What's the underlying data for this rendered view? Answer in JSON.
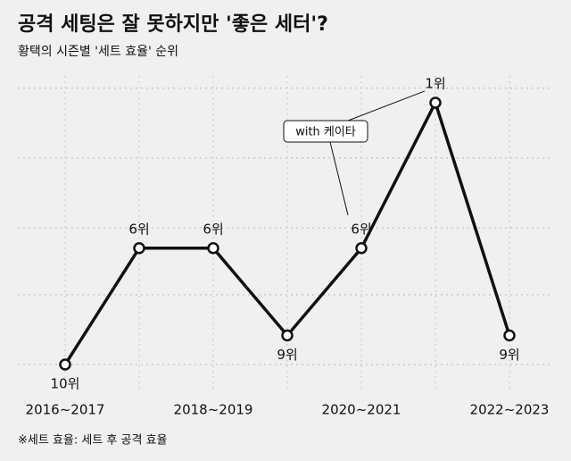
{
  "chart_data": {
    "type": "line",
    "title": "공격 세팅은 잘 못하지만 '좋은 세터'?",
    "subtitle": "황택의 시즌별 '세트 효율' 순위",
    "note": "※세트 효율: 세트 후 공격 효율",
    "annotation": "with 케이타",
    "categories": [
      "2016~2017",
      null,
      "2018~2019",
      null,
      "2020~2021",
      null,
      "2022~2023"
    ],
    "values": [
      10,
      6,
      6,
      9,
      6,
      1,
      9
    ],
    "value_labels": [
      "10위",
      "6위",
      "6위",
      "9위",
      "6위",
      "1위",
      "9위"
    ],
    "color": "#111111",
    "y_inverted": true,
    "ylim": [
      0,
      11
    ],
    "yticks": [
      0.5,
      2.9,
      5.3,
      7.6,
      10
    ],
    "grid": true
  }
}
